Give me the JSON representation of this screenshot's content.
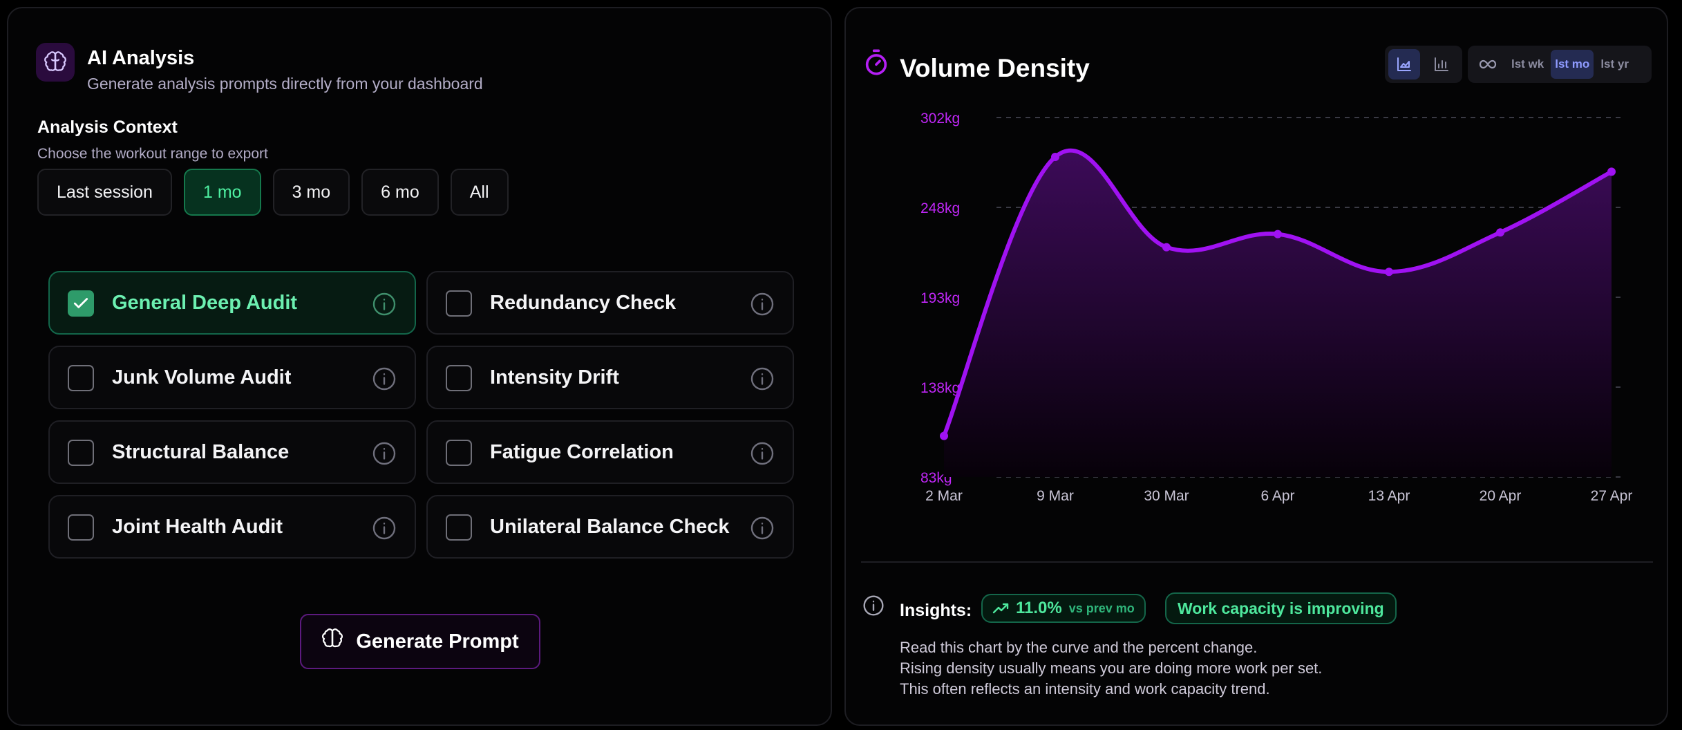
{
  "analysis": {
    "title": "AI Analysis",
    "subtitle": "Generate analysis prompts directly from your dashboard",
    "context_title": "Analysis Context",
    "context_subtitle": "Choose the workout range to export",
    "ranges": [
      {
        "label": "Last session",
        "active": false
      },
      {
        "label": "1 mo",
        "active": true
      },
      {
        "label": "3 mo",
        "active": false
      },
      {
        "label": "6 mo",
        "active": false
      },
      {
        "label": "All",
        "active": false
      }
    ],
    "audits": [
      {
        "label": "General Deep Audit",
        "checked": true
      },
      {
        "label": "Redundancy Check",
        "checked": false
      },
      {
        "label": "Junk Volume Audit",
        "checked": false
      },
      {
        "label": "Intensity Drift",
        "checked": false
      },
      {
        "label": "Structural Balance",
        "checked": false
      },
      {
        "label": "Fatigue Correlation",
        "checked": false
      },
      {
        "label": "Joint Health Audit",
        "checked": false
      },
      {
        "label": "Unilateral Balance Check",
        "checked": false
      }
    ],
    "generate_label": "Generate Prompt"
  },
  "volume": {
    "title": "Volume Density",
    "chart_types": [
      {
        "icon": "area-chart-icon",
        "active": true
      },
      {
        "icon": "bar-chart-icon",
        "active": false
      }
    ],
    "periods": [
      {
        "label": "∞",
        "icon": "infinity-icon",
        "active": false
      },
      {
        "label": "lst wk",
        "active": false
      },
      {
        "label": "lst mo",
        "active": true
      },
      {
        "label": "lst yr",
        "active": false
      }
    ]
  },
  "chart_data": {
    "type": "area",
    "title": "",
    "xlabel": "",
    "ylabel": "",
    "unit": "kg",
    "x": [
      "2 Mar",
      "9 Mar",
      "30 Mar",
      "6 Apr",
      "13 Apr",
      "20 Apr",
      "27 Apr"
    ],
    "series": [
      {
        "values": [
          108,
          278,
          223,
          231,
          208,
          232,
          269
        ]
      }
    ],
    "ylim": [
      83,
      302
    ],
    "yticks": [
      "302kg",
      "248kg",
      "193kg",
      "138kg",
      "83kg"
    ],
    "grid": "horizontal-dashed",
    "colors": {
      "line": "#a012f2",
      "fill_top": "#3c0b58",
      "fill_bottom": "#070109",
      "tick_y": "#c026f7",
      "tick_x": "#c9c5d6"
    }
  },
  "insights": {
    "label": "Insights:",
    "pct": "11.0%",
    "comparison": "vs prev mo",
    "trend": "Work capacity is improving",
    "lines": [
      "Read this chart by the curve and the percent change.",
      "Rising density usually means you are doing more work per set.",
      "This often reflects an intensity and work capacity trend."
    ]
  },
  "colors": {
    "accent_green": "#4ef0a1",
    "accent_purple": "#a012f2",
    "accent_blue": "#8f9bff"
  }
}
